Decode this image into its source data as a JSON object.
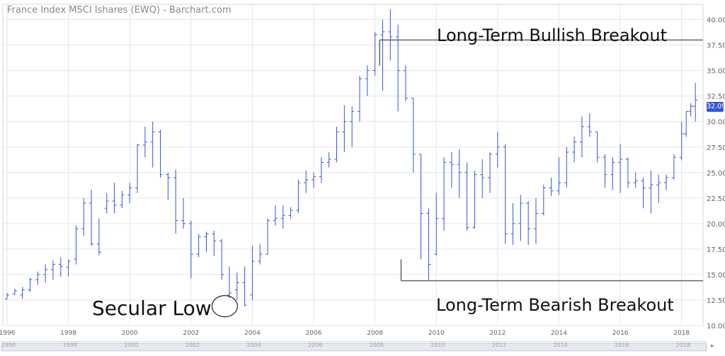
{
  "title": "France Index MSCI Ishares (EWQ) - Barchart.com",
  "last_price_label": "32.09",
  "annotations": {
    "bullish": "Long-Term Bullish Breakout",
    "bearish": "Long-Term Bearish Breakout",
    "secular_low": "Secular Low"
  },
  "colors": {
    "bars": "#3355dd",
    "grid": "#e3e6ea",
    "levels": "#666666",
    "badge": "#3355dd"
  },
  "scroll_labels": [
    "1996",
    "1998",
    "2000",
    "2002",
    "2004",
    "2006",
    "2008",
    "2010",
    "2012",
    "2014",
    "2016",
    "2018"
  ],
  "chart_data": {
    "type": "ohlc",
    "title": "France Index MSCI Ishares (EWQ) - Barchart.com",
    "xlabel": "",
    "ylabel": "",
    "xlim": [
      1996.0,
      2018.7
    ],
    "ylim": [
      10.0,
      41.5
    ],
    "grid": true,
    "y_axis_side": "right",
    "x_ticks": [
      1996,
      1998,
      2000,
      2002,
      2004,
      2006,
      2008,
      2010,
      2012,
      2014,
      2016,
      2018
    ],
    "y_ticks": [
      10.0,
      12.5,
      15.0,
      17.5,
      20.0,
      22.5,
      25.0,
      27.5,
      30.0,
      32.5,
      35.0,
      37.5,
      40.0
    ],
    "last_price": 32.09,
    "levels": [
      {
        "name": "Long-Term Bullish Breakout",
        "value": 38.0,
        "x_start": 2008.15
      },
      {
        "name": "Long-Term Bearish Breakout",
        "value": 14.4,
        "x_start": 2008.85
      }
    ],
    "secular_low": {
      "x": 2003.1,
      "y": 11.9
    },
    "bars": [
      {
        "t": 1996.0,
        "o": 12.6,
        "h": 13.2,
        "l": 12.6,
        "c": 13.0
      },
      {
        "t": 1996.25,
        "o": 13.1,
        "h": 13.6,
        "l": 13.0,
        "c": 13.4
      },
      {
        "t": 1996.5,
        "o": 13.0,
        "h": 13.8,
        "l": 12.6,
        "c": 13.5
      },
      {
        "t": 1996.75,
        "o": 13.5,
        "h": 14.7,
        "l": 13.3,
        "c": 14.5
      },
      {
        "t": 1997.0,
        "o": 14.5,
        "h": 15.3,
        "l": 14.0,
        "c": 15.0
      },
      {
        "t": 1997.25,
        "o": 15.0,
        "h": 16.0,
        "l": 14.2,
        "c": 15.5
      },
      {
        "t": 1997.5,
        "o": 15.5,
        "h": 16.4,
        "l": 14.5,
        "c": 16.0
      },
      {
        "t": 1997.75,
        "o": 16.0,
        "h": 16.7,
        "l": 14.8,
        "c": 15.8
      },
      {
        "t": 1998.0,
        "o": 15.7,
        "h": 16.5,
        "l": 14.8,
        "c": 16.3
      },
      {
        "t": 1998.25,
        "o": 16.5,
        "h": 19.8,
        "l": 16.0,
        "c": 19.5
      },
      {
        "t": 1998.5,
        "o": 19.5,
        "h": 22.5,
        "l": 18.8,
        "c": 22.0
      },
      {
        "t": 1998.75,
        "o": 22.0,
        "h": 23.3,
        "l": 17.8,
        "c": 18.0
      },
      {
        "t": 1999.0,
        "o": 18.0,
        "h": 20.5,
        "l": 16.9,
        "c": 17.2
      },
      {
        "t": 1999.25,
        "o": 21.5,
        "h": 23.0,
        "l": 21.0,
        "c": 22.2
      },
      {
        "t": 1999.5,
        "o": 22.2,
        "h": 24.0,
        "l": 21.0,
        "c": 21.8
      },
      {
        "t": 1999.75,
        "o": 21.8,
        "h": 23.2,
        "l": 21.5,
        "c": 22.8
      },
      {
        "t": 2000.0,
        "o": 22.8,
        "h": 24.0,
        "l": 22.0,
        "c": 23.5
      },
      {
        "t": 2000.25,
        "o": 23.5,
        "h": 27.8,
        "l": 23.0,
        "c": 27.7
      },
      {
        "t": 2000.5,
        "o": 27.7,
        "h": 29.5,
        "l": 26.5,
        "c": 28.0
      },
      {
        "t": 2000.75,
        "o": 28.0,
        "h": 30.0,
        "l": 25.5,
        "c": 29.0
      },
      {
        "t": 2001.0,
        "o": 29.0,
        "h": 29.2,
        "l": 24.5,
        "c": 24.8
      },
      {
        "t": 2001.25,
        "o": 24.8,
        "h": 25.0,
        "l": 22.3,
        "c": 24.5
      },
      {
        "t": 2001.5,
        "o": 24.5,
        "h": 25.3,
        "l": 19.0,
        "c": 20.3
      },
      {
        "t": 2001.75,
        "o": 20.3,
        "h": 22.5,
        "l": 19.5,
        "c": 20.0
      },
      {
        "t": 2002.0,
        "o": 20.0,
        "h": 20.3,
        "l": 14.6,
        "c": 17.0
      },
      {
        "t": 2002.25,
        "o": 17.0,
        "h": 19.0,
        "l": 16.7,
        "c": 18.7
      },
      {
        "t": 2002.5,
        "o": 18.7,
        "h": 19.2,
        "l": 17.2,
        "c": 19.0
      },
      {
        "t": 2002.75,
        "o": 19.0,
        "h": 19.3,
        "l": 16.8,
        "c": 18.3
      },
      {
        "t": 2003.0,
        "o": 18.3,
        "h": 18.5,
        "l": 14.5,
        "c": 15.0
      },
      {
        "t": 2003.25,
        "o": 13.0,
        "h": 15.8,
        "l": 12.7,
        "c": 13.2
      },
      {
        "t": 2003.5,
        "o": 13.5,
        "h": 15.2,
        "l": 12.5,
        "c": 14.2
      },
      {
        "t": 2003.75,
        "o": 14.2,
        "h": 15.8,
        "l": 11.9,
        "c": 12.0
      },
      {
        "t": 2004.0,
        "o": 13.0,
        "h": 17.8,
        "l": 12.5,
        "c": 16.3
      },
      {
        "t": 2004.25,
        "o": 16.3,
        "h": 18.0,
        "l": 16.0,
        "c": 17.0
      },
      {
        "t": 2004.5,
        "o": 17.0,
        "h": 20.5,
        "l": 17.0,
        "c": 20.3
      },
      {
        "t": 2004.75,
        "o": 20.3,
        "h": 21.8,
        "l": 19.8,
        "c": 20.5
      },
      {
        "t": 2005.0,
        "o": 20.5,
        "h": 21.8,
        "l": 19.5,
        "c": 20.8
      },
      {
        "t": 2005.25,
        "o": 20.8,
        "h": 21.6,
        "l": 20.5,
        "c": 21.3
      },
      {
        "t": 2005.5,
        "o": 21.3,
        "h": 24.3,
        "l": 21.0,
        "c": 24.0
      },
      {
        "t": 2005.75,
        "o": 24.0,
        "h": 25.2,
        "l": 23.0,
        "c": 24.3
      },
      {
        "t": 2006.0,
        "o": 24.3,
        "h": 25.0,
        "l": 23.5,
        "c": 24.6
      },
      {
        "t": 2006.25,
        "o": 24.6,
        "h": 26.5,
        "l": 24.0,
        "c": 26.0
      },
      {
        "t": 2006.5,
        "o": 26.0,
        "h": 27.0,
        "l": 25.5,
        "c": 26.3
      },
      {
        "t": 2006.75,
        "o": 26.3,
        "h": 29.5,
        "l": 26.0,
        "c": 29.0
      },
      {
        "t": 2007.0,
        "o": 29.0,
        "h": 31.6,
        "l": 27.0,
        "c": 30.0
      },
      {
        "t": 2007.25,
        "o": 30.0,
        "h": 31.5,
        "l": 27.5,
        "c": 31.0
      },
      {
        "t": 2007.5,
        "o": 31.0,
        "h": 34.5,
        "l": 30.0,
        "c": 34.2
      },
      {
        "t": 2007.75,
        "o": 34.2,
        "h": 35.5,
        "l": 32.5,
        "c": 35.0
      },
      {
        "t": 2008.0,
        "o": 35.0,
        "h": 38.8,
        "l": 34.5,
        "c": 38.5
      },
      {
        "t": 2008.25,
        "o": 38.5,
        "h": 40.0,
        "l": 33.0,
        "c": 38.8
      },
      {
        "t": 2008.5,
        "o": 38.8,
        "h": 41.0,
        "l": 36.0,
        "c": 38.3
      },
      {
        "t": 2008.75,
        "o": 38.3,
        "h": 39.5,
        "l": 31.0,
        "c": 35.0
      },
      {
        "t": 2009.0,
        "o": 35.0,
        "h": 35.5,
        "l": 32.0,
        "c": 32.3
      },
      {
        "t": 2009.25,
        "o": 32.3,
        "h": 32.3,
        "l": 25.0,
        "c": 26.8
      },
      {
        "t": 2009.5,
        "o": 26.8,
        "h": 26.8,
        "l": 16.5,
        "c": 21.0
      },
      {
        "t": 2009.75,
        "o": 21.0,
        "h": 21.5,
        "l": 14.4,
        "c": 16.0
      },
      {
        "t": 2010.0,
        "o": 17.0,
        "h": 23.0,
        "l": 16.9,
        "c": 20.5
      },
      {
        "t": 2010.25,
        "o": 20.5,
        "h": 26.5,
        "l": 19.3,
        "c": 26.0
      },
      {
        "t": 2010.5,
        "o": 26.0,
        "h": 27.0,
        "l": 23.5,
        "c": 25.8
      },
      {
        "t": 2010.75,
        "o": 25.8,
        "h": 27.3,
        "l": 22.5,
        "c": 25.0
      },
      {
        "t": 2011.0,
        "o": 25.0,
        "h": 26.0,
        "l": 19.3,
        "c": 19.6
      },
      {
        "t": 2011.25,
        "o": 19.6,
        "h": 25.2,
        "l": 19.5,
        "c": 24.8
      },
      {
        "t": 2011.5,
        "o": 24.8,
        "h": 26.3,
        "l": 22.5,
        "c": 24.5
      },
      {
        "t": 2011.75,
        "o": 24.5,
        "h": 27.0,
        "l": 23.0,
        "c": 26.8
      },
      {
        "t": 2012.0,
        "o": 26.8,
        "h": 29.0,
        "l": 25.5,
        "c": 27.5
      },
      {
        "t": 2012.25,
        "o": 27.5,
        "h": 27.8,
        "l": 18.0,
        "c": 19.0
      },
      {
        "t": 2012.5,
        "o": 19.0,
        "h": 22.0,
        "l": 17.9,
        "c": 20.0
      },
      {
        "t": 2012.75,
        "o": 20.0,
        "h": 22.8,
        "l": 18.3,
        "c": 22.0
      },
      {
        "t": 2013.0,
        "o": 22.0,
        "h": 22.2,
        "l": 17.9,
        "c": 19.5
      },
      {
        "t": 2013.25,
        "o": 19.5,
        "h": 22.5,
        "l": 18.0,
        "c": 21.0
      },
      {
        "t": 2013.5,
        "o": 21.0,
        "h": 23.8,
        "l": 20.8,
        "c": 23.5
      },
      {
        "t": 2013.75,
        "o": 23.5,
        "h": 24.5,
        "l": 22.7,
        "c": 23.2
      },
      {
        "t": 2014.0,
        "o": 23.2,
        "h": 26.5,
        "l": 22.8,
        "c": 24.0
      },
      {
        "t": 2014.25,
        "o": 24.0,
        "h": 27.5,
        "l": 23.5,
        "c": 27.0
      },
      {
        "t": 2014.5,
        "o": 27.0,
        "h": 28.5,
        "l": 26.0,
        "c": 28.0
      },
      {
        "t": 2014.75,
        "o": 28.0,
        "h": 30.5,
        "l": 26.5,
        "c": 29.5
      },
      {
        "t": 2015.0,
        "o": 29.5,
        "h": 30.8,
        "l": 28.5,
        "c": 29.0
      },
      {
        "t": 2015.25,
        "o": 29.0,
        "h": 29.0,
        "l": 26.0,
        "c": 26.5
      },
      {
        "t": 2015.5,
        "o": 26.5,
        "h": 26.8,
        "l": 23.5,
        "c": 24.8
      },
      {
        "t": 2015.75,
        "o": 24.8,
        "h": 26.5,
        "l": 23.3,
        "c": 26.0
      },
      {
        "t": 2016.0,
        "o": 26.0,
        "h": 27.8,
        "l": 23.0,
        "c": 26.3
      },
      {
        "t": 2016.25,
        "o": 26.3,
        "h": 26.5,
        "l": 23.5,
        "c": 24.0
      },
      {
        "t": 2016.5,
        "o": 24.0,
        "h": 25.0,
        "l": 23.5,
        "c": 24.2
      },
      {
        "t": 2016.75,
        "o": 24.2,
        "h": 24.5,
        "l": 21.5,
        "c": 23.5
      },
      {
        "t": 2017.0,
        "o": 23.5,
        "h": 25.2,
        "l": 21.0,
        "c": 23.8
      },
      {
        "t": 2017.25,
        "o": 23.8,
        "h": 24.8,
        "l": 22.0,
        "c": 24.0
      },
      {
        "t": 2017.5,
        "o": 24.0,
        "h": 24.8,
        "l": 23.3,
        "c": 24.5
      },
      {
        "t": 2017.75,
        "o": 24.5,
        "h": 26.8,
        "l": 24.3,
        "c": 26.5
      },
      {
        "t": 2018.0,
        "o": 26.5,
        "h": 30.0,
        "l": 26.2,
        "c": 28.8
      },
      {
        "t": 2018.15,
        "o": 28.8,
        "h": 31.0,
        "l": 28.5,
        "c": 31.0
      },
      {
        "t": 2018.3,
        "o": 31.0,
        "h": 31.8,
        "l": 30.5,
        "c": 31.5
      },
      {
        "t": 2018.45,
        "o": 31.5,
        "h": 33.8,
        "l": 30.0,
        "c": 32.09
      }
    ]
  }
}
